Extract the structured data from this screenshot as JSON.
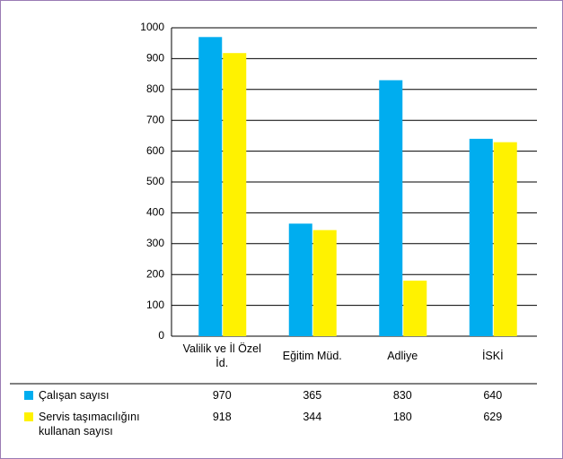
{
  "chart_data": {
    "type": "bar",
    "categories": [
      "Valilik ve İl Özel İd.",
      "Eğitim Müd.",
      "Adliye",
      "İSKİ"
    ],
    "series": [
      {
        "name": "Çalışan sayısı",
        "color": "#00adef",
        "values": [
          970,
          365,
          830,
          640
        ]
      },
      {
        "name": "Servis taşımacılığını kullanan sayısı",
        "color": "#fff200",
        "values": [
          918,
          344,
          180,
          629
        ]
      }
    ],
    "ylim": [
      0,
      1000
    ],
    "yticks": [
      0,
      100,
      200,
      300,
      400,
      500,
      600,
      700,
      800,
      900,
      1000
    ],
    "grid": true
  }
}
